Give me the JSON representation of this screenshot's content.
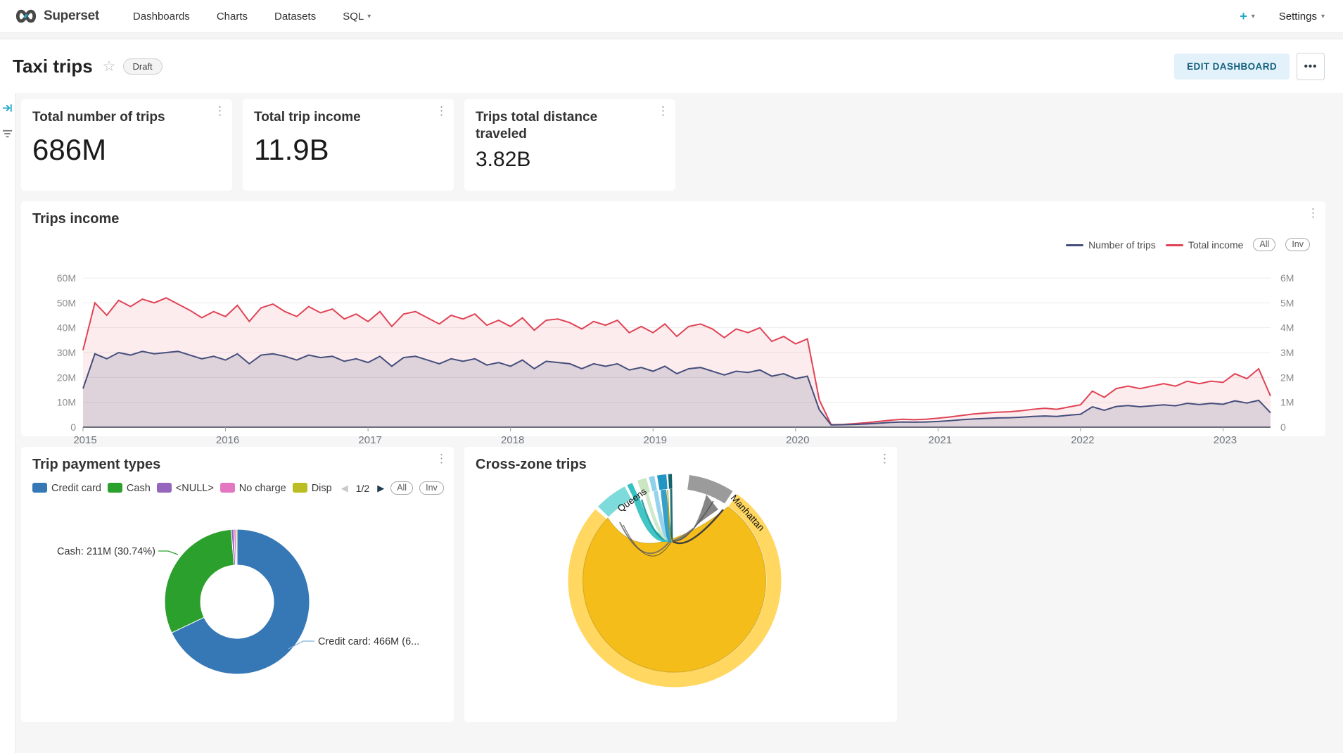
{
  "navbar": {
    "brand": "Superset",
    "items": [
      {
        "label": "Dashboards"
      },
      {
        "label": "Charts"
      },
      {
        "label": "Datasets"
      },
      {
        "label": "SQL",
        "caret": "▾"
      }
    ],
    "plus_label": "+",
    "plus_caret": "▾",
    "settings_label": "Settings",
    "settings_caret": "▾"
  },
  "header": {
    "title": "Taxi trips",
    "star_icon": "☆",
    "status_badge": "Draft",
    "edit_button": "EDIT DASHBOARD",
    "more_button": "•••"
  },
  "kpis": [
    {
      "title": "Total number of trips",
      "value": "686M"
    },
    {
      "title": "Total trip income",
      "value": "11.9B"
    },
    {
      "title": "Trips total distance traveled",
      "value": "3.82B"
    }
  ],
  "chart_data": [
    {
      "id": "trips_income",
      "type": "area",
      "title": "Trips income",
      "legend_position": "top-right",
      "grid": true,
      "legend": [
        {
          "name": "Number of trips",
          "color": "#454e7c"
        },
        {
          "name": "Total income",
          "color": "#e04355"
        }
      ],
      "legend_buttons": [
        "All",
        "Inv"
      ],
      "x_start": "2015-01",
      "x_interval": "month",
      "x_ticks": [
        "2015",
        "2016",
        "2017",
        "2018",
        "2019",
        "2020",
        "2021",
        "2022",
        "2023"
      ],
      "left_ticks": [
        "60M",
        "50M",
        "40M",
        "30M",
        "20M",
        "10M",
        "0"
      ],
      "right_ticks": [
        "6M",
        "5M",
        "4M",
        "3M",
        "2M",
        "1M",
        "0"
      ],
      "ylim_left_millions": [
        0,
        60
      ],
      "ylim_right_millions": [
        0,
        6
      ],
      "series": [
        {
          "name": "Number of trips",
          "axis": "left",
          "values_millions": [
            15.5,
            29.5,
            27.5,
            30,
            29,
            30.5,
            29.5,
            30,
            30.5,
            29,
            27.5,
            28.5,
            27,
            29.5,
            25.5,
            29,
            29.5,
            28.5,
            27,
            29,
            28,
            28.5,
            26.5,
            27.5,
            26,
            28.5,
            24.5,
            28,
            28.5,
            27,
            25.5,
            27.5,
            26.5,
            27.5,
            25,
            26,
            24.5,
            27,
            23.5,
            26.5,
            26,
            25.5,
            23.5,
            25.5,
            24.5,
            25.5,
            23,
            24,
            22.5,
            24.5,
            21.5,
            23.5,
            24,
            22.5,
            21,
            22.5,
            22,
            23,
            20.5,
            21.5,
            19.5,
            20.5,
            7,
            0.9,
            1,
            1.1,
            1.3,
            1.6,
            1.9,
            2.1,
            2,
            2.1,
            2.3,
            2.6,
            3,
            3.3,
            3.5,
            3.7,
            3.8,
            4,
            4.3,
            4.5,
            4.3,
            4.8,
            5.2,
            8.2,
            6.8,
            8.3,
            8.7,
            8.2,
            8.6,
            9,
            8.6,
            9.6,
            9.1,
            9.6,
            9.2,
            10.6,
            9.7,
            10.8,
            5.8
          ]
        },
        {
          "name": "Total income",
          "axis": "left",
          "values_millions": [
            31,
            50,
            45,
            51,
            48.5,
            51.5,
            50,
            52,
            49.5,
            47,
            44,
            46.5,
            44.5,
            49,
            42.5,
            48,
            49.5,
            46.5,
            44.5,
            48.5,
            46,
            47.5,
            43.5,
            45.5,
            42.5,
            46.5,
            40.5,
            45.5,
            46.5,
            44,
            41.5,
            45,
            43.5,
            45.5,
            41,
            43,
            40.5,
            44,
            39,
            43,
            43.5,
            42,
            39.5,
            42.5,
            41,
            43,
            38,
            40.5,
            38,
            41.5,
            36.5,
            40.5,
            41.5,
            39.5,
            36,
            39.5,
            38,
            40,
            34.5,
            36.5,
            33.5,
            35.5,
            11,
            1,
            1.1,
            1.4,
            1.8,
            2.3,
            2.8,
            3.2,
            3,
            3.2,
            3.6,
            4.1,
            4.7,
            5.3,
            5.7,
            6,
            6.2,
            6.6,
            7.2,
            7.6,
            7.2,
            8.1,
            9,
            14.5,
            12,
            15.5,
            16.5,
            15.5,
            16.5,
            17.5,
            16.5,
            18.5,
            17.5,
            18.5,
            18,
            21.5,
            19.5,
            23.5,
            12.5
          ]
        }
      ]
    },
    {
      "id": "trip_payment_types",
      "type": "pie",
      "title": "Trip payment types",
      "legend_page": "1/2",
      "legend_prev": "◀",
      "legend_next": "▶",
      "legend_buttons": [
        "All",
        "Inv"
      ],
      "slices": [
        {
          "label": "Credit card",
          "pct": 67.95,
          "color": "#3578b5"
        },
        {
          "label": "Cash",
          "pct": 30.74,
          "color": "#2ba02c"
        },
        {
          "label": "<NULL>",
          "pct": 0.6,
          "color": "#9467bd"
        },
        {
          "label": "No charge",
          "pct": 0.45,
          "color": "#e377c2"
        },
        {
          "label": "Disp",
          "pct": 0.26,
          "color": "#bcbd22"
        }
      ],
      "callouts": {
        "cash": "Cash: 211M (30.74%)",
        "credit": "Credit card: 466M (6..."
      }
    },
    {
      "id": "cross_zone_trips",
      "type": "chord",
      "title": "Cross-zone trips",
      "zones": [
        "Queens",
        "Manhattan"
      ],
      "ring_segments": [
        {
          "from": 36,
          "to": 312,
          "color": "#ffd761"
        },
        {
          "from": 314,
          "to": 332,
          "color": "#7edbdb"
        },
        {
          "from": 333.5,
          "to": 336.5,
          "color": "#35c2c2"
        },
        {
          "from": 339.5,
          "to": 344.5,
          "color": "#cbe6c3"
        },
        {
          "from": 346,
          "to": 349,
          "color": "#8ed1ea"
        },
        {
          "from": 350.5,
          "to": 355.5,
          "color": "#2196c4"
        },
        {
          "from": 356.5,
          "to": 358.5,
          "color": "#15636e"
        },
        {
          "from": 8,
          "to": 33,
          "color": "#9b9b9b"
        }
      ]
    }
  ]
}
